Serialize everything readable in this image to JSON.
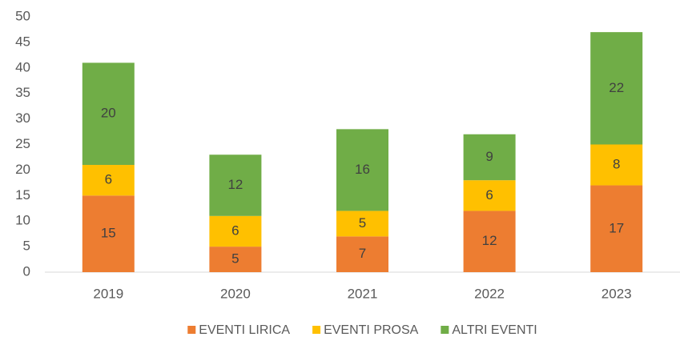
{
  "chart_data": {
    "type": "stacked_bar",
    "categories": [
      "2019",
      "2020",
      "2021",
      "2022",
      "2023"
    ],
    "series": [
      {
        "name": "EVENTI LIRICA",
        "color": "#ED7D31",
        "values": [
          15,
          5,
          7,
          12,
          17
        ]
      },
      {
        "name": "EVENTI PROSA",
        "color": "#FFC000",
        "values": [
          6,
          6,
          5,
          6,
          8
        ]
      },
      {
        "name": "ALTRI EVENTI",
        "color": "#70AD47",
        "values": [
          20,
          12,
          16,
          9,
          22
        ]
      }
    ],
    "ylim": [
      0,
      50
    ],
    "yticks": [
      0,
      5,
      10,
      15,
      20,
      25,
      30,
      35,
      40,
      45,
      50
    ],
    "grid": false,
    "legend": "bottom"
  }
}
